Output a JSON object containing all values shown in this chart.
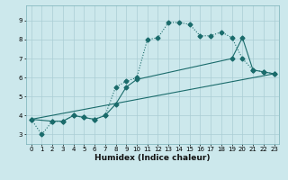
{
  "xlabel": "Humidex (Indice chaleur)",
  "ylabel": "",
  "background_color": "#cce8ec",
  "grid_color": "#aacdd4",
  "line_color": "#1a6b6b",
  "xlim": [
    -0.5,
    23.5
  ],
  "ylim": [
    2.5,
    9.8
  ],
  "xticks": [
    0,
    1,
    2,
    3,
    4,
    5,
    6,
    7,
    8,
    9,
    10,
    11,
    12,
    13,
    14,
    15,
    16,
    17,
    18,
    19,
    20,
    21,
    22,
    23
  ],
  "yticks": [
    3,
    4,
    5,
    6,
    7,
    8,
    9
  ],
  "series": [
    {
      "x": [
        0,
        1,
        2,
        3,
        4,
        5,
        6,
        7,
        8,
        9,
        10,
        11,
        12,
        13,
        14,
        15,
        16,
        17,
        18,
        19,
        20,
        21,
        22,
        23
      ],
      "y": [
        3.8,
        3.0,
        3.7,
        3.7,
        4.0,
        3.9,
        3.8,
        4.0,
        5.5,
        5.8,
        6.0,
        8.0,
        8.1,
        8.9,
        8.9,
        8.8,
        8.2,
        8.2,
        8.4,
        8.1,
        7.0,
        6.4,
        6.3,
        6.2
      ],
      "marker": "D",
      "markersize": 2.5,
      "linewidth": 0.8,
      "linestyle": ":"
    },
    {
      "x": [
        0,
        2,
        3,
        4,
        5,
        6,
        7,
        8,
        9,
        10,
        19,
        20,
        21,
        22,
        23
      ],
      "y": [
        3.8,
        3.7,
        3.7,
        4.0,
        3.9,
        3.8,
        4.0,
        4.6,
        5.5,
        5.9,
        7.0,
        8.1,
        6.4,
        6.3,
        6.2
      ],
      "marker": "D",
      "markersize": 2.5,
      "linewidth": 0.8,
      "linestyle": "-"
    },
    {
      "x": [
        0,
        23
      ],
      "y": [
        3.8,
        6.2
      ],
      "marker": null,
      "markersize": 0,
      "linewidth": 0.8,
      "linestyle": "-"
    }
  ]
}
